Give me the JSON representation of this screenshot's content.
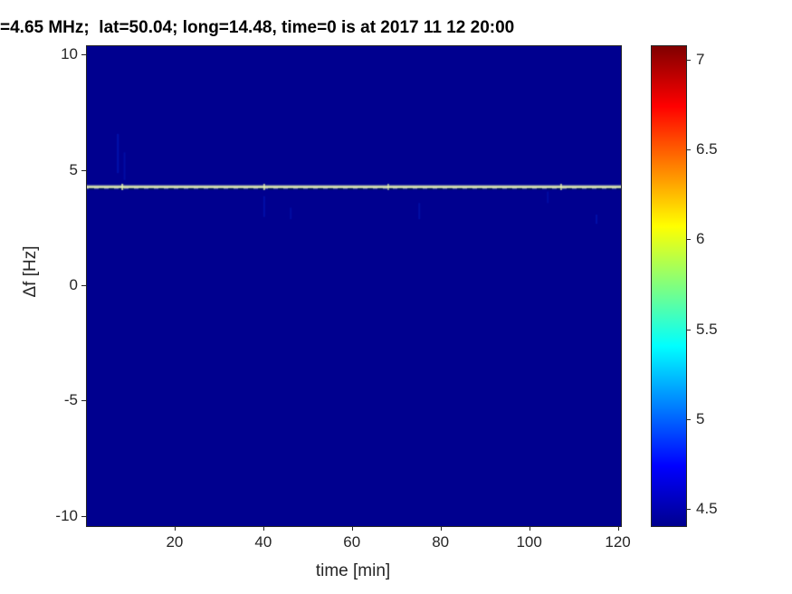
{
  "title_bar": {
    "title": "=4.65 MHz;  lat=50.04; long=14.48, time=0 is at 2017 11 12 20:00"
  },
  "chart_data": {
    "type": "heatmap",
    "title": "=4.65 MHz;  lat=50.04; long=14.48, time=0 is at 2017 11 12 20:00",
    "xlabel": "time [min]",
    "ylabel": "Δf [Hz]",
    "xlim": [
      0,
      120.5
    ],
    "ylim": [
      -10.4,
      10.4
    ],
    "xticks": [
      20,
      40,
      60,
      80,
      100,
      120
    ],
    "yticks": [
      10,
      5,
      0,
      -5,
      -10
    ],
    "grid": false,
    "background_value": 4.4,
    "colormap": "jet",
    "colorbar": {
      "position": "right",
      "vmin": 4.41,
      "vmax": 7.08,
      "ticks": [
        4.5,
        5,
        5.5,
        6,
        6.5,
        7
      ]
    },
    "features": [
      {
        "type": "hline",
        "y": 4.3,
        "value": 6.1,
        "description": "bright carrier trace spanning full time range"
      },
      {
        "type": "streak",
        "x": 7,
        "y1": 6.6,
        "y2": 4.9,
        "w": 2,
        "alpha": 0.5
      },
      {
        "type": "streak",
        "x": 8.5,
        "y1": 5.8,
        "y2": 4.6,
        "w": 2,
        "alpha": 0.35
      },
      {
        "type": "streak",
        "x": 40,
        "y1": 3.9,
        "y2": 3.0,
        "w": 2,
        "alpha": 0.45
      },
      {
        "type": "streak",
        "x": 46,
        "y1": 3.4,
        "y2": 2.9,
        "w": 2,
        "alpha": 0.35
      },
      {
        "type": "streak",
        "x": 75,
        "y1": 3.6,
        "y2": 2.9,
        "w": 2,
        "alpha": 0.4
      },
      {
        "type": "streak",
        "x": 104,
        "y1": 4.1,
        "y2": 3.6,
        "w": 2,
        "alpha": 0.35
      },
      {
        "type": "streak",
        "x": 115,
        "y1": 3.1,
        "y2": 2.7,
        "w": 2,
        "alpha": 0.45
      },
      {
        "type": "blip",
        "x": 8,
        "alpha": 0.8
      },
      {
        "type": "blip",
        "x": 40,
        "alpha": 0.7
      },
      {
        "type": "blip",
        "x": 68,
        "alpha": 0.6
      },
      {
        "type": "blip",
        "x": 107,
        "alpha": 0.7
      }
    ]
  },
  "colors": {
    "background": "#00008f",
    "line": "#e8f5b2",
    "line_dark": "#04195c",
    "artifact": "#0022c8",
    "axis_text": "#262626",
    "title_text": "#000000",
    "jet_stops": [
      "#00008f",
      "#0000ff",
      "#00ffff",
      "#ffff00",
      "#ff0000",
      "#800000"
    ],
    "jet_positions": [
      0,
      12.5,
      37.5,
      62.5,
      87.5,
      100
    ]
  }
}
